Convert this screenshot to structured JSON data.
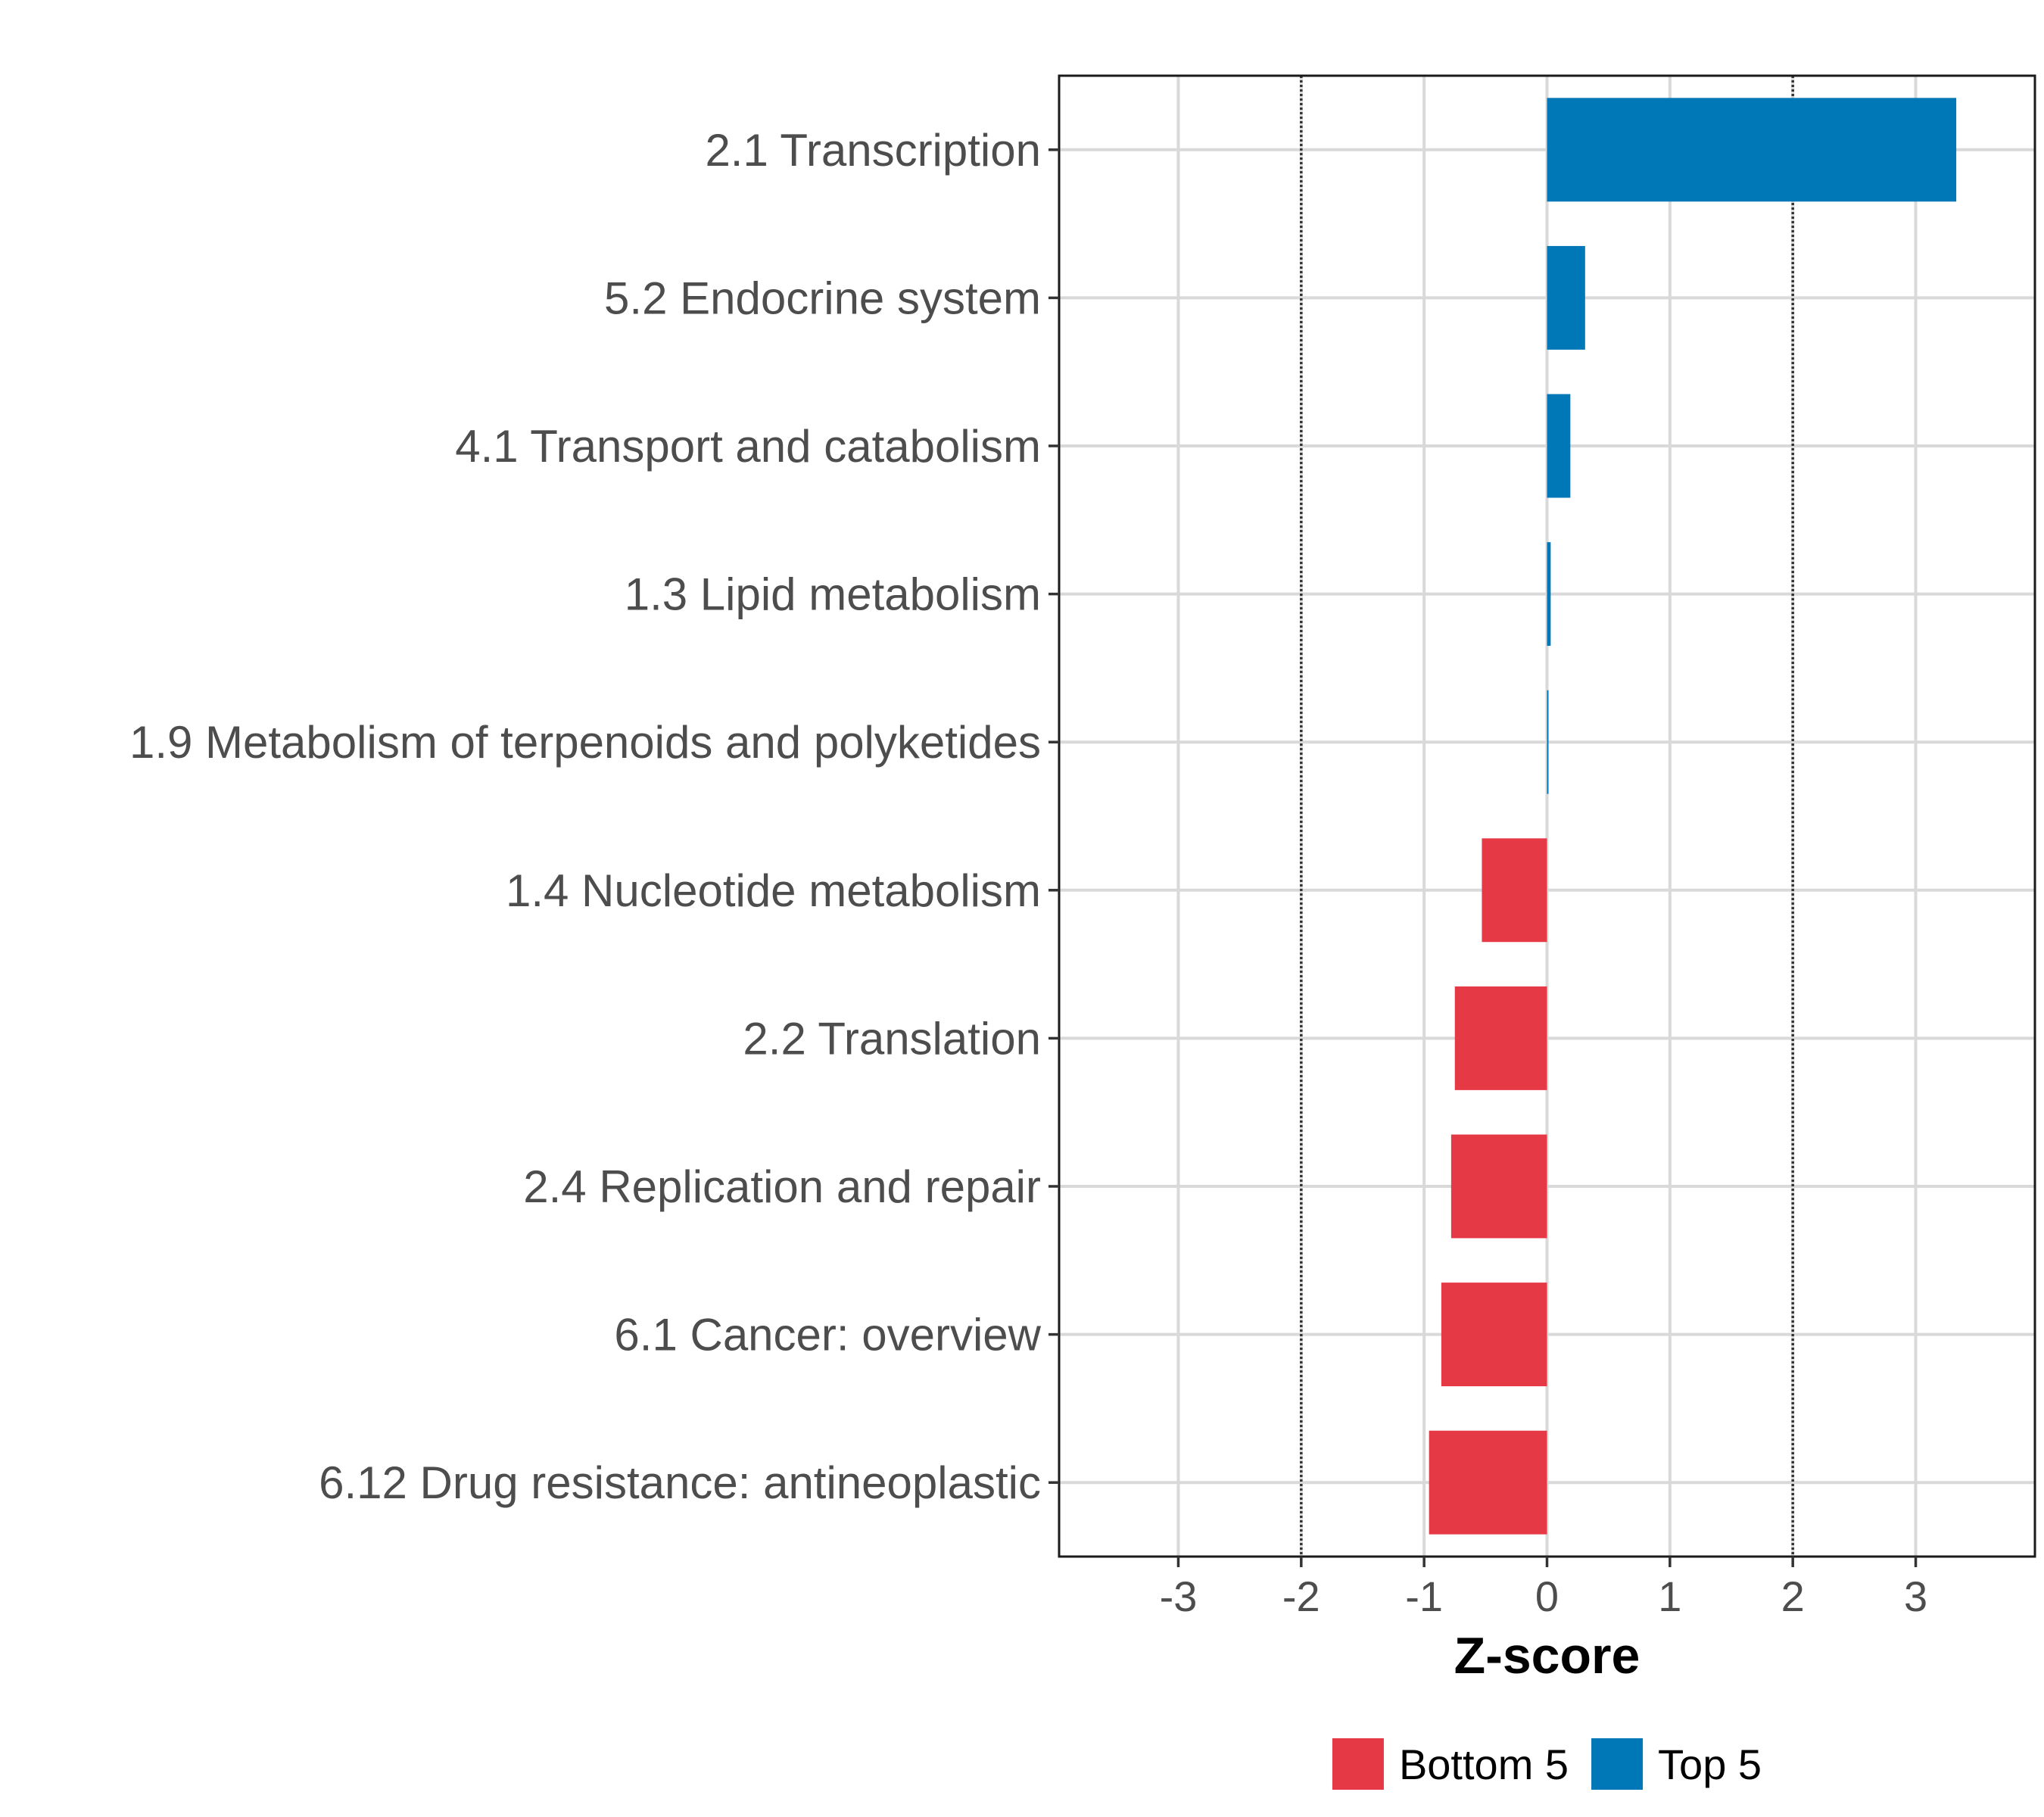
{
  "chart_data": {
    "type": "bar",
    "orientation": "horizontal",
    "categories": [
      "2.1 Transcription",
      "5.2 Endocrine system",
      "4.1 Transport and catabolism",
      "1.3 Lipid metabolism",
      "1.9 Metabolism of terpenoids and polyketides",
      "1.4 Nucleotide metabolism",
      "2.2 Translation",
      "2.4 Replication and repair",
      "6.1 Cancer: overview",
      "6.12 Drug resistance: antineoplastic"
    ],
    "values": [
      3.33,
      0.31,
      0.19,
      0.03,
      0.01,
      -0.53,
      -0.75,
      -0.78,
      -0.86,
      -0.96
    ],
    "groups": [
      "Top 5",
      "Top 5",
      "Top 5",
      "Top 5",
      "Top 5",
      "Bottom 5",
      "Bottom 5",
      "Bottom 5",
      "Bottom 5",
      "Bottom 5"
    ],
    "xlabel": "Z-score",
    "ylabel": "",
    "xlim": [
      -3.97,
      3.97
    ],
    "xticks": [
      -3,
      -2,
      -1,
      0,
      1,
      2,
      3
    ],
    "xtick_labels": [
      "-3",
      "-2",
      "-1",
      "0",
      "1",
      "2",
      "3"
    ],
    "reference_lines": [
      -2,
      2
    ],
    "grid": true,
    "legend": {
      "position": "bottom",
      "entries": [
        {
          "label": "Bottom 5",
          "color": "#e63946"
        },
        {
          "label": "Top 5",
          "color": "#0077b6"
        }
      ]
    }
  }
}
